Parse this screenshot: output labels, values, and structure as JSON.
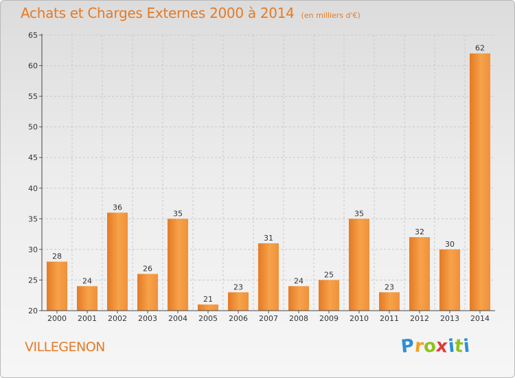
{
  "title": "Achats et Charges Externes 2000 à 2014",
  "subtitle": "(en milliers d'€)",
  "commune": "VILLEGENON",
  "logo": {
    "letters": [
      "P",
      "r",
      "o",
      "x",
      "i",
      "t",
      "i"
    ],
    "colors": [
      "#2e8ed8",
      "#f0a020",
      "#8fc31f",
      "#e03a3a",
      "#2e8ed8",
      "#8fc31f",
      "#2e8ed8"
    ]
  },
  "colors": {
    "accent": "#e57a25",
    "bar_light": "#f6a24a",
    "bar_dark": "#e07a22",
    "grid": "#c8c8c8"
  },
  "chart_data": {
    "type": "bar",
    "categories": [
      "2000",
      "2001",
      "2002",
      "2003",
      "2004",
      "2005",
      "2006",
      "2007",
      "2008",
      "2009",
      "2010",
      "2011",
      "2012",
      "2013",
      "2014"
    ],
    "values": [
      28,
      24,
      36,
      26,
      35,
      21,
      23,
      31,
      24,
      25,
      35,
      23,
      32,
      30,
      62
    ],
    "title": "Achats et Charges Externes 2000 à 2014",
    "ylabel": "",
    "xlabel": "",
    "ylim": [
      20,
      65
    ],
    "yticks": [
      20,
      25,
      30,
      35,
      40,
      45,
      50,
      55,
      60,
      65
    ],
    "grid": true,
    "data_labels": true
  }
}
